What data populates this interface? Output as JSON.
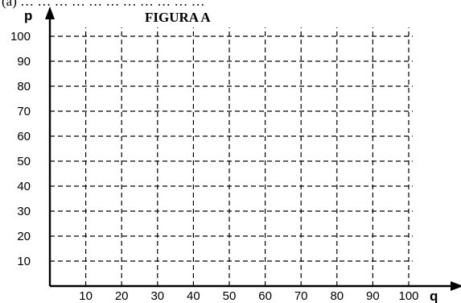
{
  "cut_text": "(a) … … … … … … … … … … …",
  "chart_data": {
    "type": "scatter",
    "title": "FIGURA A",
    "xlabel": "q",
    "ylabel": "p",
    "x_ticks": [
      10,
      20,
      30,
      40,
      50,
      60,
      70,
      80,
      90,
      100
    ],
    "y_ticks": [
      10,
      20,
      30,
      40,
      50,
      60,
      70,
      80,
      90,
      100
    ],
    "xlim": [
      0,
      100
    ],
    "ylim": [
      0,
      100
    ],
    "grid": true,
    "grid_style": "dashed",
    "series": []
  }
}
